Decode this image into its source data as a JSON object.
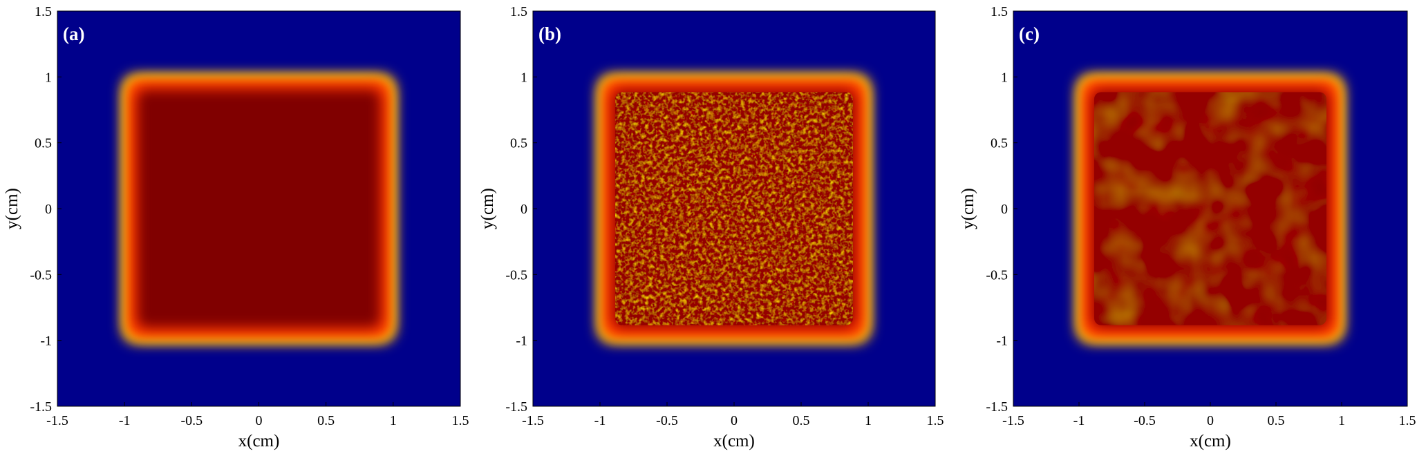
{
  "chart_data": [
    {
      "type": "heatmap",
      "panel_label": "(a)",
      "xlabel": "x(cm)",
      "ylabel": "y(cm)",
      "xlim": [
        -1.5,
        1.5
      ],
      "ylim": [
        -1.5,
        1.5
      ],
      "xticks": [
        "-1.5",
        "-1",
        "-0.5",
        "0",
        "0.5",
        "1",
        "1.5"
      ],
      "yticks": [
        "-1.5",
        "-1",
        "-0.5",
        "0",
        "0.5",
        "1",
        "1.5"
      ],
      "field": {
        "shape": "flat-top square",
        "half_width": 1.0,
        "edge": "smooth",
        "interior_level": 1.0,
        "noise": 0.0
      },
      "colormap": "jet",
      "background_color": "#00008b",
      "grid": false
    },
    {
      "type": "heatmap",
      "panel_label": "(b)",
      "xlabel": "x(cm)",
      "ylabel": "y(cm)",
      "xlim": [
        -1.5,
        1.5
      ],
      "ylim": [
        -1.5,
        1.5
      ],
      "xticks": [
        "-1.5",
        "-1",
        "-0.5",
        "0",
        "0.5",
        "1",
        "1.5"
      ],
      "yticks": [
        "-1.5",
        "-1",
        "-0.5",
        "0",
        "0.5",
        "1",
        "1.5"
      ],
      "field": {
        "shape": "flat-top square",
        "half_width": 1.0,
        "edge": "smooth",
        "interior_level": 0.88,
        "noise": 0.12
      },
      "colormap": "jet",
      "background_color": "#00008b",
      "grid": false
    },
    {
      "type": "heatmap",
      "panel_label": "(c)",
      "xlabel": "x(cm)",
      "ylabel": "y(cm)",
      "xlim": [
        -1.5,
        1.5
      ],
      "ylim": [
        -1.5,
        1.5
      ],
      "xticks": [
        "-1.5",
        "-1",
        "-0.5",
        "0",
        "0.5",
        "1",
        "1.5"
      ],
      "yticks": [
        "-1.5",
        "-1",
        "-0.5",
        "0",
        "0.5",
        "1",
        "1.5"
      ],
      "field": {
        "shape": "flat-top square",
        "half_width": 1.0,
        "edge": "smooth",
        "interior_level": 0.88,
        "noise": 0.02
      },
      "colormap": "jet",
      "background_color": "#00008b",
      "grid": false
    }
  ]
}
